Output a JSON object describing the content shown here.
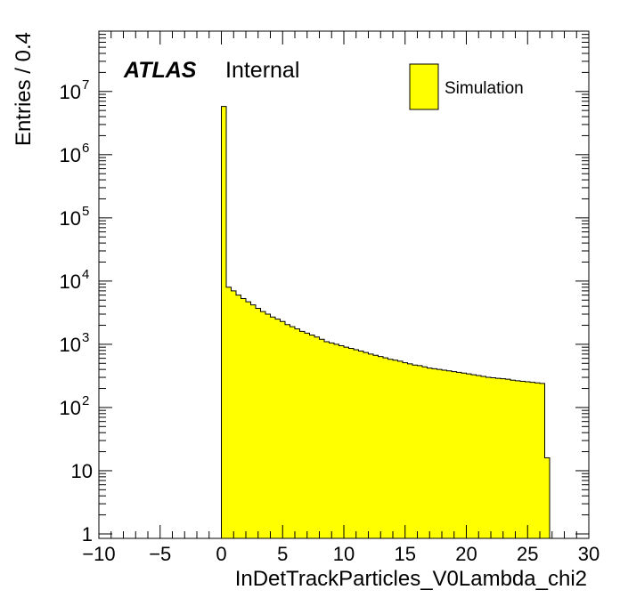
{
  "chart_data": {
    "type": "bar",
    "xlabel": "InDetTrackParticles_V0Lambda_chi2",
    "ylabel": "Entries / 0.4",
    "xlim": [
      -10,
      30
    ],
    "ylim": [
      0.85,
      90000000
    ],
    "log_y": true,
    "bin_width": 0.4,
    "x_tick_labels": [
      "−10",
      "−5",
      "0",
      "5",
      "10",
      "15",
      "20",
      "25",
      "30"
    ],
    "y_tick_labels": [
      {
        "base": "1",
        "exp": ""
      },
      {
        "base": "10",
        "exp": ""
      },
      {
        "base": "10",
        "exp": "2"
      },
      {
        "base": "10",
        "exp": "3"
      },
      {
        "base": "10",
        "exp": "4"
      },
      {
        "base": "10",
        "exp": "5"
      },
      {
        "base": "10",
        "exp": "6"
      },
      {
        "base": "10",
        "exp": "7"
      }
    ],
    "fill_color": "#ffff00",
    "line_color": "#000000",
    "annotation": {
      "bold": "ATLAS",
      "normal": "Internal"
    },
    "legend": {
      "position": "top-right",
      "entries": [
        "Simulation"
      ]
    },
    "series": [
      {
        "name": "Simulation",
        "x_start": 0.0,
        "values": [
          5800000,
          8000,
          7000,
          6000,
          5300,
          4700,
          4200,
          3700,
          3300,
          3000,
          2700,
          2500,
          2300,
          2050,
          1900,
          1750,
          1600,
          1500,
          1400,
          1300,
          1200,
          1100,
          1050,
          1000,
          950,
          900,
          860,
          820,
          780,
          740,
          700,
          670,
          640,
          610,
          580,
          560,
          540,
          510,
          490,
          470,
          460,
          440,
          420,
          410,
          400,
          390,
          380,
          370,
          360,
          350,
          340,
          330,
          320,
          310,
          300,
          295,
          290,
          285,
          280,
          270,
          265,
          260,
          255,
          250,
          245,
          240,
          16
        ]
      }
    ]
  }
}
